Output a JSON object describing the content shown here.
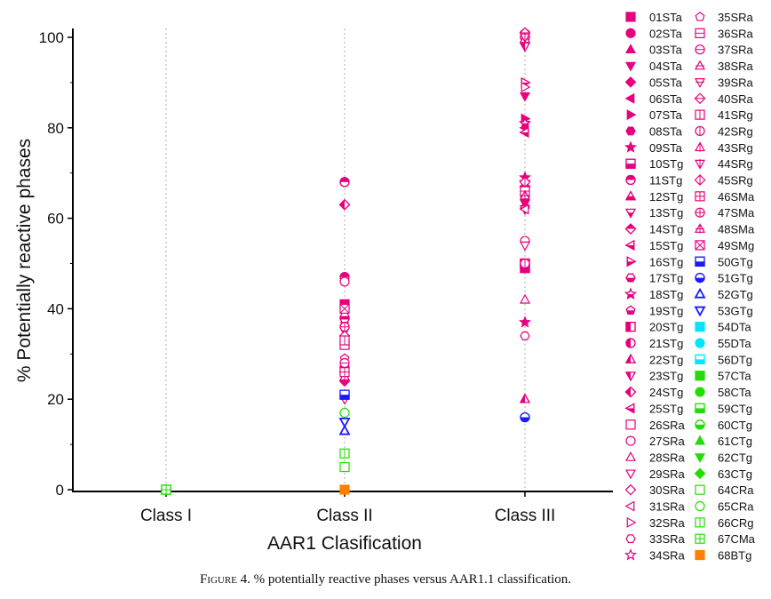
{
  "chart_data": {
    "type": "scatter",
    "xlabel": "AAR1 Clasification",
    "ylabel": "% Potentially reactive phases",
    "categories": [
      "Class I",
      "Class II",
      "Class III"
    ],
    "ylim": [
      0,
      100
    ],
    "yticks": [
      0,
      20,
      40,
      60,
      80,
      100
    ],
    "grid": "vertical dotted lines at categories",
    "legend_position": "right",
    "series": [
      {
        "name": "01STa",
        "color": "#e6007e",
        "marker": "square-filled",
        "points": [
          {
            "x": "Class II",
            "y": 41
          },
          {
            "x": "Class III",
            "y": 50
          }
        ]
      },
      {
        "name": "02STa",
        "color": "#e6007e",
        "marker": "circle-filled",
        "points": [
          {
            "x": "Class II",
            "y": 38
          },
          {
            "x": "Class III",
            "y": 65
          }
        ]
      },
      {
        "name": "03STa",
        "color": "#e6007e",
        "marker": "triangle-up-filled",
        "points": [
          {
            "x": "Class II",
            "y": 37
          },
          {
            "x": "Class III",
            "y": 63
          }
        ]
      },
      {
        "name": "04STa",
        "color": "#e6007e",
        "marker": "triangle-down-filled",
        "points": [
          {
            "x": "Class II",
            "y": 35
          },
          {
            "x": "Class III",
            "y": 87
          }
        ]
      },
      {
        "name": "05STa",
        "color": "#e6007e",
        "marker": "diamond-filled",
        "points": [
          {
            "x": "Class II",
            "y": 24
          }
        ]
      },
      {
        "name": "06STa",
        "color": "#e6007e",
        "marker": "triangle-left-filled",
        "points": [
          {
            "x": "Class III",
            "y": 80
          }
        ]
      },
      {
        "name": "07STa",
        "color": "#e6007e",
        "marker": "triangle-right-filled",
        "points": [
          {
            "x": "Class III",
            "y": 82
          }
        ]
      },
      {
        "name": "08STa",
        "color": "#e6007e",
        "marker": "hexagon-filled",
        "points": [
          {
            "x": "Class III",
            "y": 64
          }
        ]
      },
      {
        "name": "09STa",
        "color": "#e6007e",
        "marker": "star-filled",
        "points": [
          {
            "x": "Class III",
            "y": 69
          },
          {
            "x": "Class III",
            "y": 37
          }
        ]
      },
      {
        "name": "10STg",
        "color": "#e6007e",
        "marker": "square-bottom-half",
        "points": [
          {
            "x": "Class III",
            "y": 49
          }
        ]
      },
      {
        "name": "11STg",
        "color": "#e6007e",
        "marker": "circle-top-half",
        "points": [
          {
            "x": "Class II",
            "y": 68
          },
          {
            "x": "Class II",
            "y": 47
          },
          {
            "x": "Class III",
            "y": 100
          }
        ]
      },
      {
        "name": "12STg",
        "color": "#e6007e",
        "marker": "triangle-up-half",
        "points": [
          {
            "x": "Class III",
            "y": 20
          }
        ]
      },
      {
        "name": "13STg",
        "color": "#e6007e",
        "marker": "triangle-down-half",
        "points": [
          {
            "x": "Class III",
            "y": 62
          }
        ]
      },
      {
        "name": "14STg",
        "color": "#e6007e",
        "marker": "diamond-top-half",
        "points": [
          {
            "x": "Class III",
            "y": 67
          }
        ]
      },
      {
        "name": "15STg",
        "color": "#e6007e",
        "marker": "triangle-left-half",
        "points": [
          {
            "x": "Class III",
            "y": 79
          }
        ]
      },
      {
        "name": "16STg",
        "color": "#e6007e",
        "marker": "triangle-right-half",
        "points": [
          {
            "x": "Class III",
            "y": 90
          }
        ]
      },
      {
        "name": "17STg",
        "color": "#e6007e",
        "marker": "hexagon-half",
        "points": [
          {
            "x": "Class III",
            "y": 99
          }
        ]
      },
      {
        "name": "18STg",
        "color": "#e6007e",
        "marker": "star-half",
        "points": [
          {
            "x": "Class III",
            "y": 81
          }
        ]
      },
      {
        "name": "19STg",
        "color": "#e6007e",
        "marker": "pentagon-half",
        "points": [
          {
            "x": "Class III",
            "y": 101
          }
        ]
      },
      {
        "name": "20STg",
        "color": "#e6007e",
        "marker": "square-left-half",
        "points": [
          {
            "x": "Class III",
            "y": 50
          }
        ]
      },
      {
        "name": "21STg",
        "color": "#e6007e",
        "marker": "circle-left-half",
        "points": [
          {
            "x": "Class II",
            "y": 27
          }
        ]
      },
      {
        "name": "22STg",
        "color": "#e6007e",
        "marker": "triangle-up-left-half",
        "points": [
          {
            "x": "Class III",
            "y": 20
          }
        ]
      },
      {
        "name": "23STg",
        "color": "#e6007e",
        "marker": "triangle-down-left-half",
        "points": [
          {
            "x": "Class III",
            "y": 98
          }
        ]
      },
      {
        "name": "24STg",
        "color": "#e6007e",
        "marker": "diamond-left-half",
        "points": [
          {
            "x": "Class II",
            "y": 63
          }
        ]
      },
      {
        "name": "25STg",
        "color": "#e6007e",
        "marker": "triangle-left-half-v",
        "points": [
          {
            "x": "Class II",
            "y": 26
          }
        ]
      },
      {
        "name": "26SRa",
        "color": "#e6007e",
        "marker": "square-open",
        "points": [
          {
            "x": "Class II",
            "y": 32
          }
        ]
      },
      {
        "name": "27SRa",
        "color": "#e6007e",
        "marker": "circle-open",
        "points": [
          {
            "x": "Class II",
            "y": 46
          },
          {
            "x": "Class III",
            "y": 55
          }
        ]
      },
      {
        "name": "28SRa",
        "color": "#e6007e",
        "marker": "triangle-up-open",
        "points": [
          {
            "x": "Class III",
            "y": 42
          }
        ]
      },
      {
        "name": "29SRa",
        "color": "#e6007e",
        "marker": "triangle-down-open",
        "points": [
          {
            "x": "Class II",
            "y": 20
          },
          {
            "x": "Class III",
            "y": 54
          }
        ]
      },
      {
        "name": "30SRa",
        "color": "#e6007e",
        "marker": "diamond-open",
        "points": [
          {
            "x": "Class II",
            "y": 34
          }
        ]
      },
      {
        "name": "31SRa",
        "color": "#e6007e",
        "marker": "triangle-left-open",
        "points": [
          {
            "x": "Class III",
            "y": 62
          }
        ]
      },
      {
        "name": "32SRa",
        "color": "#e6007e",
        "marker": "triangle-right-open",
        "points": [
          {
            "x": "Class III",
            "y": 89
          }
        ]
      },
      {
        "name": "33SRa",
        "color": "#e6007e",
        "marker": "hexagon-open",
        "points": [
          {
            "x": "Class III",
            "y": 34
          }
        ]
      },
      {
        "name": "34SRa",
        "color": "#e6007e",
        "marker": "star-open",
        "points": [
          {
            "x": "Class III",
            "y": 68
          }
        ]
      },
      {
        "name": "35SRa",
        "color": "#e6007e",
        "marker": "pentagon-open",
        "points": [
          {
            "x": "Class II",
            "y": 29
          }
        ]
      },
      {
        "name": "36SRa",
        "color": "#e6007e",
        "marker": "square-hline-open",
        "points": [
          {
            "x": "Class III",
            "y": 66
          }
        ]
      },
      {
        "name": "37SRa",
        "color": "#e6007e",
        "marker": "circle-hline-open",
        "points": [
          {
            "x": "Class II",
            "y": 28
          }
        ]
      },
      {
        "name": "38SRa",
        "color": "#e6007e",
        "marker": "triangle-up-hline-open",
        "points": [
          {
            "x": "Class II",
            "y": 39
          }
        ]
      },
      {
        "name": "39SRa",
        "color": "#e6007e",
        "marker": "triangle-down-hline-open",
        "points": [
          {
            "x": "Class II",
            "y": 37
          }
        ]
      },
      {
        "name": "40SRa",
        "color": "#e6007e",
        "marker": "diamond-hline-open",
        "points": [
          {
            "x": "Class III",
            "y": 101
          }
        ]
      },
      {
        "name": "41SRg",
        "color": "#e6007e",
        "marker": "square-vline-open",
        "points": [
          {
            "x": "Class II",
            "y": 33
          }
        ]
      },
      {
        "name": "42SRg",
        "color": "#e6007e",
        "marker": "circle-vline-open",
        "points": [
          {
            "x": "Class III",
            "y": 50
          }
        ]
      },
      {
        "name": "43SRg",
        "color": "#e6007e",
        "marker": "triangle-up-vline-open",
        "points": [
          {
            "x": "Class II",
            "y": 25
          }
        ]
      },
      {
        "name": "44SRg",
        "color": "#e6007e",
        "marker": "triangle-down-vline-open",
        "points": [
          {
            "x": "Class III",
            "y": 100
          }
        ]
      },
      {
        "name": "45SRg",
        "color": "#e6007e",
        "marker": "diamond-vline-open",
        "points": [
          {
            "x": "Class III",
            "y": 68
          }
        ]
      },
      {
        "name": "46SMa",
        "color": "#e6007e",
        "marker": "square-plus-open",
        "points": [
          {
            "x": "Class II",
            "y": 26
          }
        ]
      },
      {
        "name": "47SMa",
        "color": "#e6007e",
        "marker": "circle-plus-open",
        "points": [
          {
            "x": "Class II",
            "y": 36
          }
        ]
      },
      {
        "name": "48SMa",
        "color": "#e6007e",
        "marker": "triangle-up-plus-open",
        "points": [
          {
            "x": "Class III",
            "y": 65
          }
        ]
      },
      {
        "name": "49SMg",
        "color": "#e6007e",
        "marker": "square-x-open",
        "points": [
          {
            "x": "Class II",
            "y": 40
          }
        ]
      },
      {
        "name": "50GTg",
        "color": "#1a1aff",
        "marker": "square-bottom-half",
        "points": [
          {
            "x": "Class II",
            "y": 21
          }
        ]
      },
      {
        "name": "51GTg",
        "color": "#1a1aff",
        "marker": "circle-bottom-half",
        "points": [
          {
            "x": "Class III",
            "y": 16
          }
        ]
      },
      {
        "name": "52GTg",
        "color": "#1a1aff",
        "marker": "triangle-up-open-thick",
        "points": [
          {
            "x": "Class II",
            "y": 13
          }
        ]
      },
      {
        "name": "53GTg",
        "color": "#1a1aff",
        "marker": "triangle-down-open-thick",
        "points": [
          {
            "x": "Class II",
            "y": 15
          }
        ]
      },
      {
        "name": "54DTa",
        "color": "#00e5ff",
        "marker": "square-filled",
        "points": []
      },
      {
        "name": "55DTa",
        "color": "#00e5ff",
        "marker": "circle-filled",
        "points": []
      },
      {
        "name": "56DTg",
        "color": "#00e5ff",
        "marker": "square-bottom-half",
        "points": []
      },
      {
        "name": "57CTa",
        "color": "#22dd00",
        "marker": "square-filled",
        "points": [
          {
            "x": "Class I",
            "y": 0
          }
        ]
      },
      {
        "name": "58CTa",
        "color": "#22dd00",
        "marker": "circle-filled",
        "points": [
          {
            "x": "Class I",
            "y": 0
          }
        ]
      },
      {
        "name": "59CTg",
        "color": "#22dd00",
        "marker": "square-bottom-half",
        "points": [
          {
            "x": "Class I",
            "y": 0
          }
        ]
      },
      {
        "name": "60CTg",
        "color": "#22dd00",
        "marker": "circle-bottom-half",
        "points": [
          {
            "x": "Class I",
            "y": 0
          }
        ]
      },
      {
        "name": "61CTg",
        "color": "#22dd00",
        "marker": "triangle-up-filled",
        "points": [
          {
            "x": "Class I",
            "y": 0
          }
        ]
      },
      {
        "name": "62CTg",
        "color": "#22dd00",
        "marker": "triangle-down-filled",
        "points": [
          {
            "x": "Class I",
            "y": 0
          }
        ]
      },
      {
        "name": "63CTg",
        "color": "#22dd00",
        "marker": "diamond-filled",
        "points": [
          {
            "x": "Class I",
            "y": 0
          }
        ]
      },
      {
        "name": "64CRa",
        "color": "#22dd00",
        "marker": "square-open",
        "points": [
          {
            "x": "Class II",
            "y": 5
          }
        ]
      },
      {
        "name": "65CRa",
        "color": "#22dd00",
        "marker": "circle-open",
        "points": [
          {
            "x": "Class II",
            "y": 17
          }
        ]
      },
      {
        "name": "66CRg",
        "color": "#22dd00",
        "marker": "square-vline-open",
        "points": [
          {
            "x": "Class II",
            "y": 8
          }
        ]
      },
      {
        "name": "67CMa",
        "color": "#22dd00",
        "marker": "square-plus-open",
        "points": [
          {
            "x": "Class I",
            "y": 0
          }
        ]
      },
      {
        "name": "68BTg",
        "color": "#ff7f00",
        "marker": "square-filled",
        "points": [
          {
            "x": "Class II",
            "y": 0
          }
        ]
      }
    ]
  },
  "caption": {
    "figure_label": "Figure 4.",
    "text": " % potentially reactive phases versus AAR1.1 classification."
  }
}
